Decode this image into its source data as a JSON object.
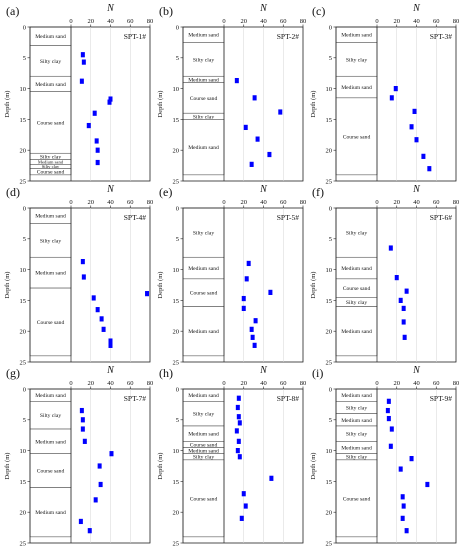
{
  "figure": {
    "axis_title_top": "N",
    "axis_title_left": "Depth (m)",
    "x_ticks": [
      0,
      20,
      40,
      60,
      80
    ],
    "y_ticks": [
      0,
      5,
      10,
      15,
      20,
      25
    ],
    "marker_color": "#0000ff",
    "layer_fill": "#ffffff",
    "layer_edge": "#555555"
  },
  "chart_data": [
    {
      "type": "scatter",
      "panel_label": "(a)",
      "title": "SPT-1#",
      "xlim": [
        0,
        80
      ],
      "ylim": [
        0,
        25
      ],
      "y_inverted": true,
      "x": [
        12,
        13,
        11,
        40,
        39,
        24,
        18,
        26,
        27,
        27
      ],
      "y": [
        4.5,
        5.7,
        8.8,
        11.7,
        12.2,
        14.0,
        16.0,
        18.5,
        20.0,
        22.0
      ],
      "strata": [
        {
          "name": "Medium sand",
          "top": 0,
          "bottom": 3
        },
        {
          "name": "Silty clay",
          "top": 3,
          "bottom": 8
        },
        {
          "name": "Medium sand",
          "top": 8,
          "bottom": 10.5
        },
        {
          "name": "Course sand",
          "top": 10.5,
          "bottom": 20.5
        },
        {
          "name": "Silty clay",
          "top": 20.5,
          "bottom": 21.5
        },
        {
          "name": "Medium sand",
          "top": 21.5,
          "bottom": 22.3
        },
        {
          "name": "Silty clay",
          "top": 22.3,
          "bottom": 23
        },
        {
          "name": "Course sand",
          "top": 23,
          "bottom": 24
        }
      ]
    },
    {
      "type": "scatter",
      "panel_label": "(b)",
      "title": "SPT-2#",
      "xlim": [
        0,
        80
      ],
      "ylim": [
        0,
        25
      ],
      "y_inverted": true,
      "x": [
        13,
        31,
        57,
        22,
        34,
        46,
        28
      ],
      "y": [
        8.7,
        11.5,
        13.8,
        16.3,
        18.2,
        20.7,
        22.3
      ],
      "strata": [
        {
          "name": "Medium sand",
          "top": 0,
          "bottom": 2.5
        },
        {
          "name": "Silty clay",
          "top": 2.5,
          "bottom": 8
        },
        {
          "name": "Medium sand",
          "top": 8,
          "bottom": 9
        },
        {
          "name": "Course sand",
          "top": 9,
          "bottom": 14
        },
        {
          "name": "Silty clay",
          "top": 14,
          "bottom": 15
        },
        {
          "name": "Medium sand",
          "top": 15,
          "bottom": 24
        }
      ]
    },
    {
      "type": "scatter",
      "panel_label": "(c)",
      "title": "SPT-3#",
      "xlim": [
        0,
        80
      ],
      "ylim": [
        0,
        25
      ],
      "y_inverted": true,
      "x": [
        19,
        15,
        38,
        35,
        40,
        47,
        53
      ],
      "y": [
        10.0,
        11.5,
        13.7,
        16.2,
        18.3,
        21.0,
        23.0
      ],
      "strata": [
        {
          "name": "Medium sand",
          "top": 0,
          "bottom": 2.5
        },
        {
          "name": "Silty clay",
          "top": 2.5,
          "bottom": 8
        },
        {
          "name": "Medium sand",
          "top": 8,
          "bottom": 11.5
        },
        {
          "name": "Course sand",
          "top": 11.5,
          "bottom": 24
        }
      ]
    },
    {
      "type": "scatter",
      "panel_label": "(d)",
      "title": "SPT-4#",
      "xlim": [
        0,
        80
      ],
      "ylim": [
        0,
        25
      ],
      "y_inverted": true,
      "x": [
        12,
        13,
        77,
        23,
        27,
        31,
        33,
        40,
        40,
        40
      ],
      "y": [
        8.7,
        11.2,
        13.9,
        14.6,
        16.5,
        18.0,
        19.7,
        21.6,
        22.0,
        22.3
      ],
      "strata": [
        {
          "name": "Medium sand",
          "top": 0,
          "bottom": 2.5
        },
        {
          "name": "Silty clay",
          "top": 2.5,
          "bottom": 8
        },
        {
          "name": "Medium sand",
          "top": 8,
          "bottom": 13
        },
        {
          "name": "Course sand",
          "top": 13,
          "bottom": 24
        }
      ]
    },
    {
      "type": "scatter",
      "panel_label": "(e)",
      "title": "SPT-5#",
      "xlim": [
        0,
        80
      ],
      "ylim": [
        0,
        25
      ],
      "y_inverted": true,
      "x": [
        25,
        23,
        47,
        20,
        20,
        32,
        28,
        29,
        31
      ],
      "y": [
        9.0,
        11.5,
        13.7,
        14.7,
        16.3,
        18.3,
        19.7,
        21.0,
        22.3
      ],
      "strata": [
        {
          "name": "Silty clay",
          "top": 0,
          "bottom": 8
        },
        {
          "name": "Medium sand",
          "top": 8,
          "bottom": 11.5
        },
        {
          "name": "Course sand",
          "top": 11.5,
          "bottom": 16
        },
        {
          "name": "Medium sand",
          "top": 16,
          "bottom": 24
        }
      ]
    },
    {
      "type": "scatter",
      "panel_label": "(f)",
      "title": "SPT-6#",
      "xlim": [
        0,
        80
      ],
      "ylim": [
        0,
        25
      ],
      "y_inverted": true,
      "x": [
        14,
        20,
        30,
        24,
        27,
        27,
        28
      ],
      "y": [
        6.5,
        11.3,
        13.5,
        15.0,
        16.3,
        18.5,
        21.0
      ],
      "strata": [
        {
          "name": "Silty clay",
          "top": 0,
          "bottom": 8
        },
        {
          "name": "Medium sand",
          "top": 8,
          "bottom": 11.5
        },
        {
          "name": "Course sand",
          "top": 11.5,
          "bottom": 14.5
        },
        {
          "name": "Silty clay",
          "top": 14.5,
          "bottom": 16
        },
        {
          "name": "Medium sand",
          "top": 16,
          "bottom": 24
        }
      ]
    },
    {
      "type": "scatter",
      "panel_label": "(g)",
      "title": "SPT-7#",
      "xlim": [
        0,
        80
      ],
      "ylim": [
        0,
        25
      ],
      "y_inverted": true,
      "x": [
        11,
        12,
        12,
        14,
        41,
        29,
        30,
        25,
        10,
        19
      ],
      "y": [
        3.5,
        5.0,
        6.5,
        8.5,
        10.5,
        12.5,
        15.5,
        18.0,
        21.5,
        23.0
      ],
      "strata": [
        {
          "name": "Medium sand",
          "top": 0,
          "bottom": 2
        },
        {
          "name": "Silty clay",
          "top": 2,
          "bottom": 6.5
        },
        {
          "name": "Medium sand",
          "top": 6.5,
          "bottom": 10.5
        },
        {
          "name": "Course sand",
          "top": 10.5,
          "bottom": 16
        },
        {
          "name": "Medium sand",
          "top": 16,
          "bottom": 24
        }
      ]
    },
    {
      "type": "scatter",
      "panel_label": "(h)",
      "title": "SPT-8#",
      "xlim": [
        0,
        80
      ],
      "ylim": [
        0,
        25
      ],
      "y_inverted": true,
      "x": [
        15,
        14,
        15,
        16,
        13,
        15,
        14,
        16,
        48,
        20,
        22,
        18
      ],
      "y": [
        1.5,
        3.0,
        4.5,
        5.5,
        6.8,
        8.5,
        10.0,
        11.0,
        14.5,
        17.0,
        19.0,
        21.0
      ],
      "strata": [
        {
          "name": "Medium sand",
          "top": 0,
          "bottom": 2
        },
        {
          "name": "Silty clay",
          "top": 2,
          "bottom": 6
        },
        {
          "name": "Medium sand",
          "top": 6,
          "bottom": 8.5
        },
        {
          "name": "Course sand",
          "top": 8.5,
          "bottom": 9.5
        },
        {
          "name": "Medium sand",
          "top": 9.5,
          "bottom": 10.5
        },
        {
          "name": "Silty clay",
          "top": 10.5,
          "bottom": 11.5
        },
        {
          "name": "Course sand",
          "top": 11.5,
          "bottom": 24
        }
      ]
    },
    {
      "type": "scatter",
      "panel_label": "(i)",
      "title": "SPT-9#",
      "xlim": [
        0,
        80
      ],
      "ylim": [
        0,
        25
      ],
      "y_inverted": true,
      "x": [
        12,
        11,
        12,
        15,
        14,
        35,
        24,
        51,
        26,
        27,
        26,
        30
      ],
      "y": [
        2.0,
        3.5,
        4.8,
        6.5,
        9.3,
        11.3,
        13.0,
        15.5,
        17.5,
        19.0,
        21.0,
        23.0
      ],
      "strata": [
        {
          "name": "Medium sand",
          "top": 0,
          "bottom": 2
        },
        {
          "name": "Silty clay",
          "top": 2,
          "bottom": 4
        },
        {
          "name": "Medium sand",
          "top": 4,
          "bottom": 6
        },
        {
          "name": "Silty clay",
          "top": 6,
          "bottom": 8.5
        },
        {
          "name": "Medium sand",
          "top": 8.5,
          "bottom": 10.5
        },
        {
          "name": "Silty clay",
          "top": 10.5,
          "bottom": 11.5
        },
        {
          "name": "Course sand",
          "top": 11.5,
          "bottom": 24
        }
      ]
    }
  ]
}
